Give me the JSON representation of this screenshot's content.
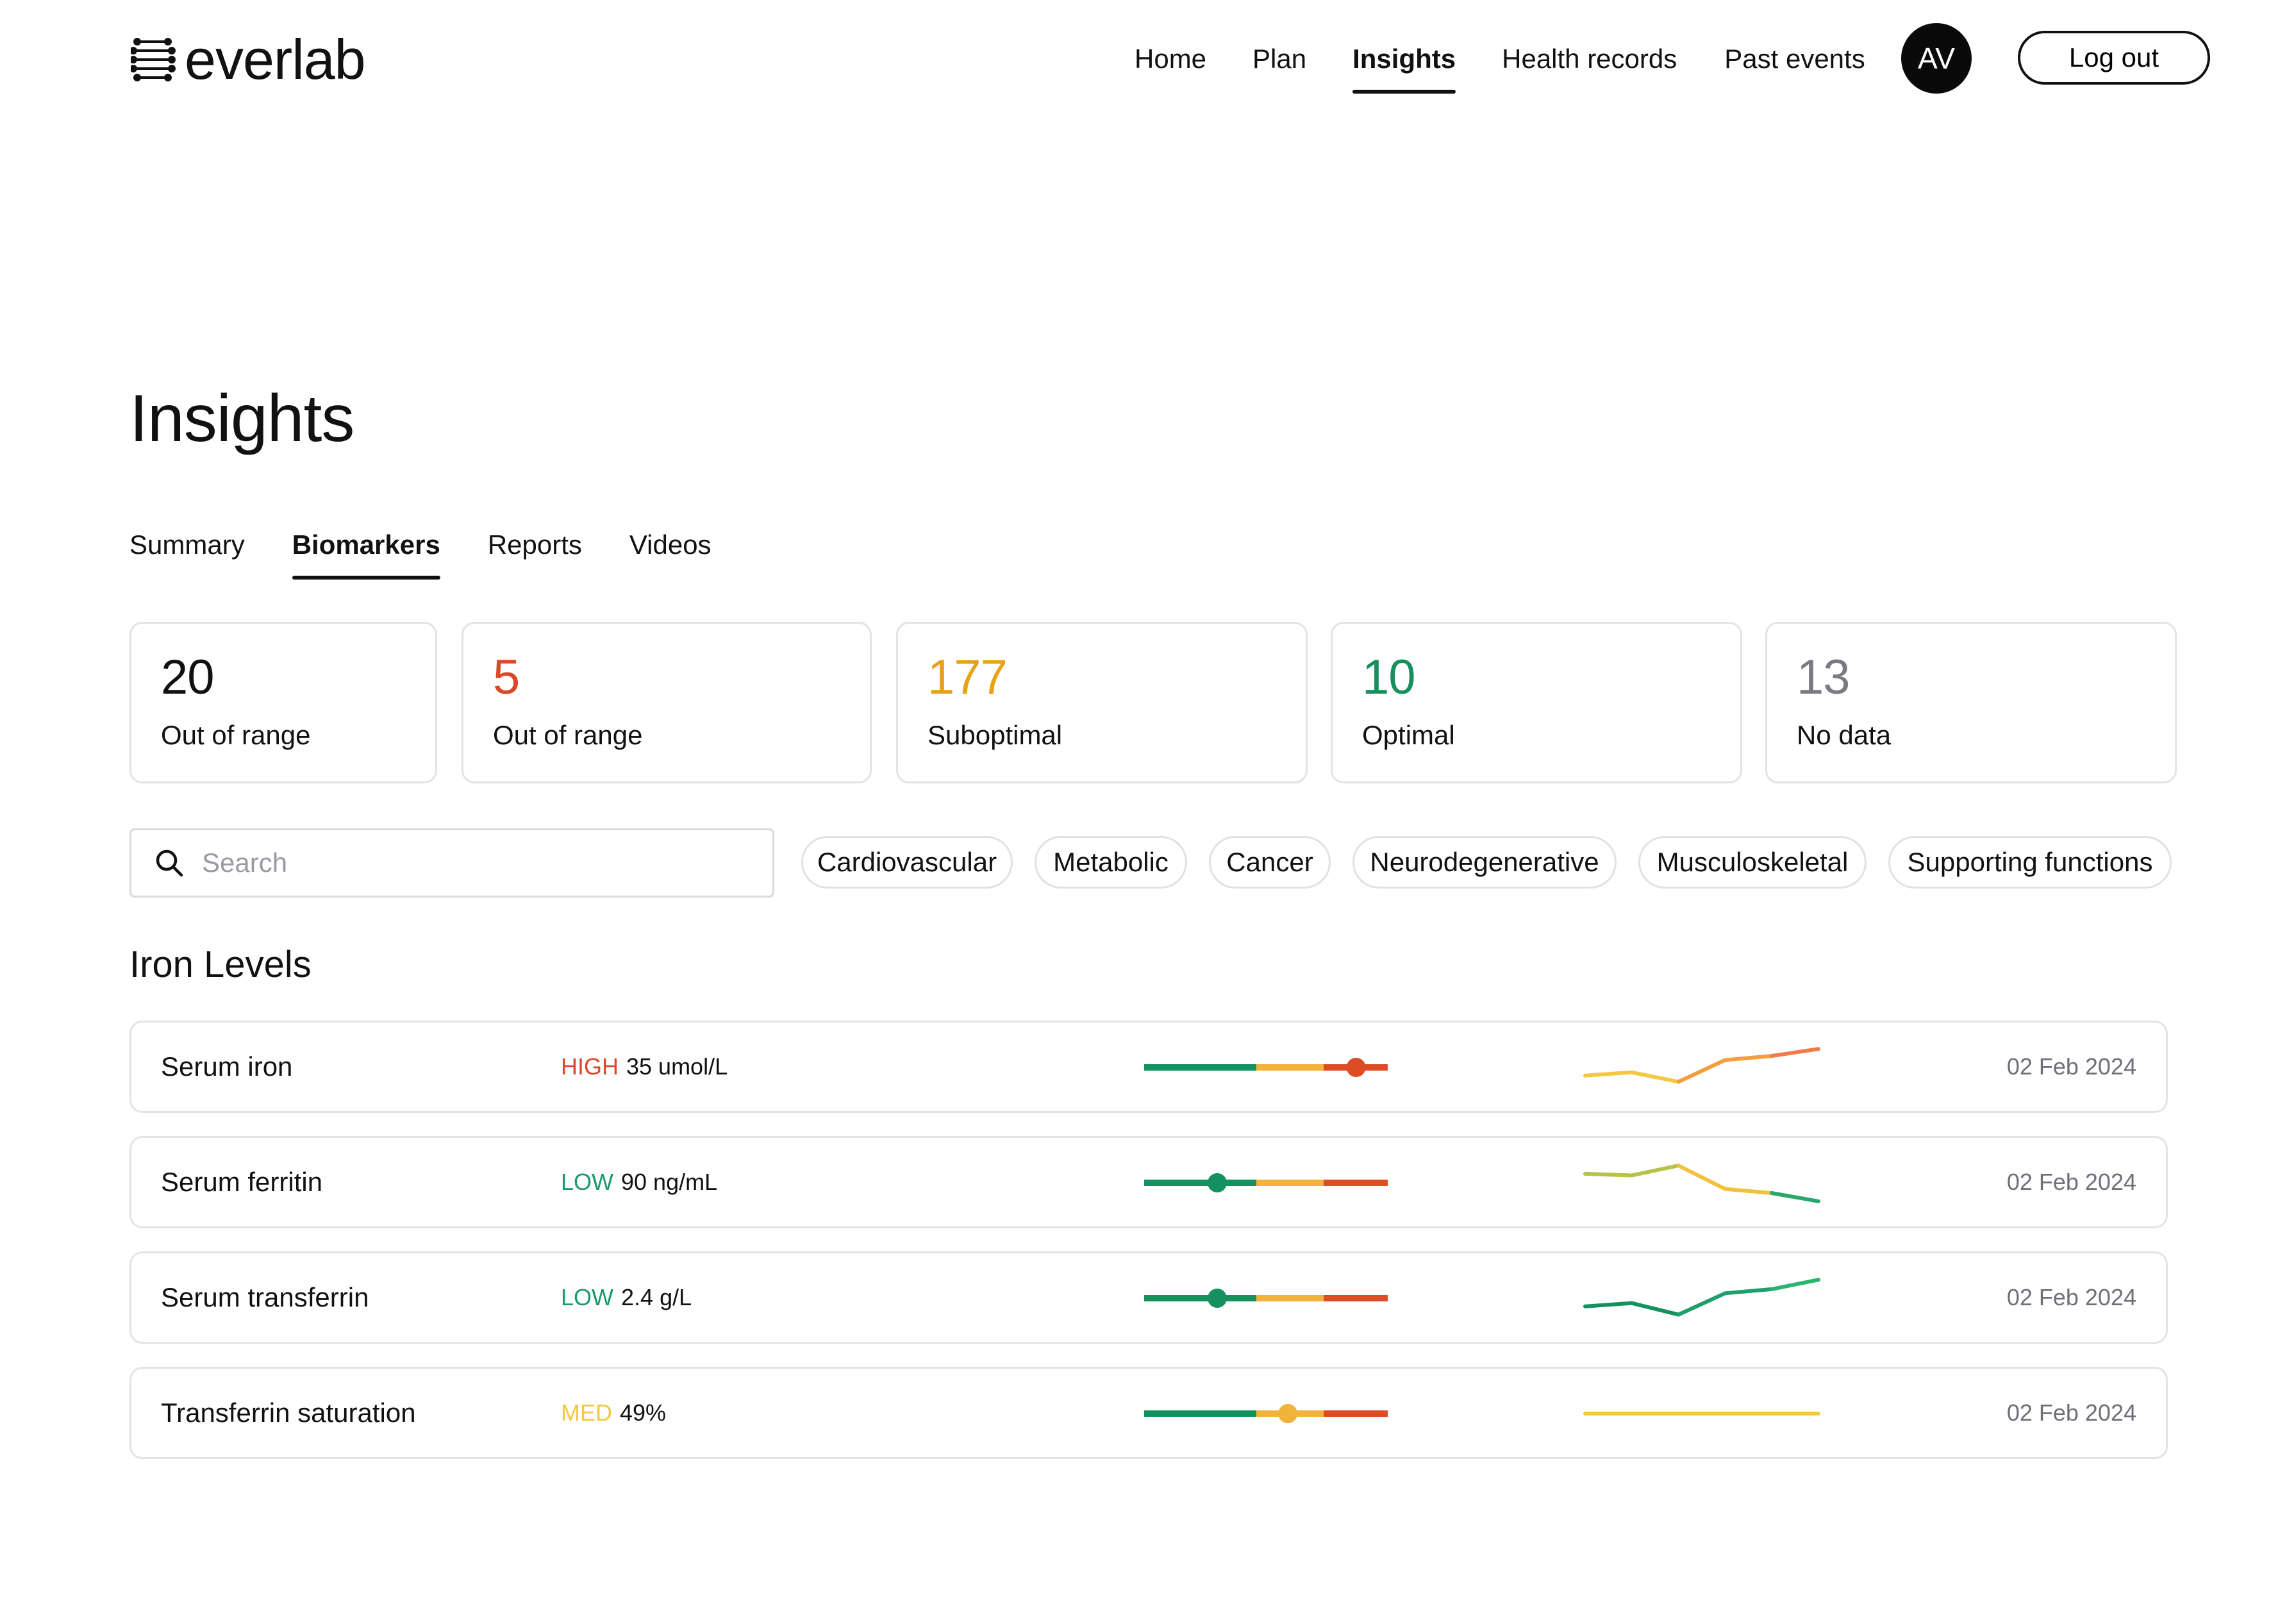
{
  "brand": {
    "name": "everlab"
  },
  "nav": {
    "items": [
      "Home",
      "Plan",
      "Insights",
      "Health records",
      "Past events"
    ],
    "active": "Insights",
    "avatar_initials": "AV",
    "logout_label": "Log out"
  },
  "page": {
    "title": "Insights",
    "tabs": [
      "Summary",
      "Biomarkers",
      "Reports",
      "Videos"
    ],
    "active_tab": "Biomarkers"
  },
  "stats": [
    {
      "value": "20",
      "label": "Out of range",
      "color": "#111111"
    },
    {
      "value": "5",
      "label": "Out of range",
      "color": "#d9482b"
    },
    {
      "value": "177",
      "label": "Suboptimal",
      "color": "#e8a21a"
    },
    {
      "value": "10",
      "label": "Optimal",
      "color": "#168f5c"
    },
    {
      "value": "13",
      "label": "No data",
      "color": "#7a7a82"
    }
  ],
  "search": {
    "placeholder": "Search"
  },
  "filters": [
    "Cardiovascular",
    "Metabolic",
    "Cancer",
    "Neurodegenerative",
    "Musculoskeletal",
    "Supporting functions"
  ],
  "colors": {
    "optimal": "#14915f",
    "suboptimal": "#f2b33d",
    "out_of_range": "#dc4d26",
    "status_high": "#d9482b",
    "status_low": "#1a9a6a",
    "status_med": "#f5c842"
  },
  "section": {
    "title": "Iron Levels",
    "rows": [
      {
        "name": "Serum iron",
        "status": "HIGH",
        "status_color": "#d9482b",
        "value": "35 umol/L",
        "marker_position": 0.87,
        "marker_color": "#dc4d26",
        "trend": [
          0.3,
          0.38,
          0.15,
          0.68,
          0.78,
          0.95
        ],
        "trend_colors": [
          "#f5c842",
          "#f2a03d",
          "#f07a4a"
        ],
        "date": "02 Feb 2024"
      },
      {
        "name": "Serum ferritin",
        "status": "LOW",
        "status_color": "#1a9a6a",
        "value": "90 ng/mL",
        "marker_position": 0.3,
        "marker_color": "#14915f",
        "trend": [
          0.72,
          0.68,
          0.92,
          0.35,
          0.25,
          0.05
        ],
        "trend_colors": [
          "#b8c24a",
          "#f2c13d",
          "#2aa86a"
        ],
        "date": "02 Feb 2024"
      },
      {
        "name": "Serum transferrin",
        "status": "LOW",
        "status_color": "#1a9a6a",
        "value": "2.4 g/L",
        "marker_position": 0.3,
        "marker_color": "#14915f",
        "trend": [
          0.3,
          0.38,
          0.1,
          0.62,
          0.72,
          0.95
        ],
        "trend_colors": [
          "#14915f",
          "#1fa06a",
          "#2ab56f"
        ],
        "date": "02 Feb 2024"
      },
      {
        "name": "Transferrin saturation",
        "status": "MED",
        "status_color": "#f5c842",
        "value": "49%",
        "marker_position": 0.59,
        "marker_color": "#f2b33d",
        "trend": [
          0.5,
          0.5,
          0.5,
          0.5,
          0.5,
          0.5
        ],
        "trend_colors": [
          "#f5c842",
          "#f5c842",
          "#f5c842"
        ],
        "date": "02 Feb 2024"
      }
    ]
  }
}
